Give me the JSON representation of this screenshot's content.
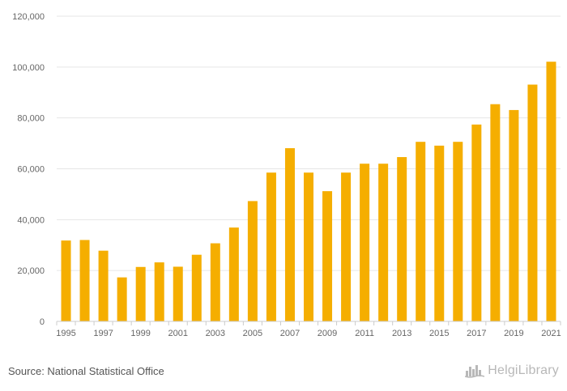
{
  "chart_data": {
    "type": "bar",
    "title": "",
    "xlabel": "",
    "ylabel": "",
    "categories": [
      "1995",
      "1996",
      "1997",
      "1998",
      "1999",
      "2000",
      "2001",
      "2002",
      "2003",
      "2004",
      "2005",
      "2006",
      "2007",
      "2008",
      "2009",
      "2010",
      "2011",
      "2012",
      "2013",
      "2014",
      "2015",
      "2016",
      "2017",
      "2018",
      "2019",
      "2020",
      "2021"
    ],
    "values": [
      31800,
      32000,
      27800,
      17300,
      21400,
      23200,
      21500,
      26200,
      30700,
      36900,
      47300,
      58500,
      68100,
      58500,
      51200,
      58500,
      62000,
      62000,
      64600,
      70600,
      69100,
      70600,
      77400,
      85400,
      83100,
      93100,
      102100
    ],
    "x_tick_labels": [
      "1995",
      "1997",
      "1999",
      "2001",
      "2003",
      "2005",
      "2007",
      "2009",
      "2011",
      "2013",
      "2015",
      "2017",
      "2019",
      "2021"
    ],
    "y_tick_labels": [
      "0",
      "20,000",
      "40,000",
      "60,000",
      "80,000",
      "100,000",
      "120,000"
    ],
    "y_tick_values": [
      0,
      20000,
      40000,
      60000,
      80000,
      100000,
      120000
    ],
    "ylim": [
      0,
      120000
    ],
    "grid": true,
    "bar_color": "#f5ae00"
  },
  "footer": {
    "source": "Source: National Statistical Office",
    "brand": "HelgiLibrary",
    "brand_icon": "city-skyline-icon"
  }
}
